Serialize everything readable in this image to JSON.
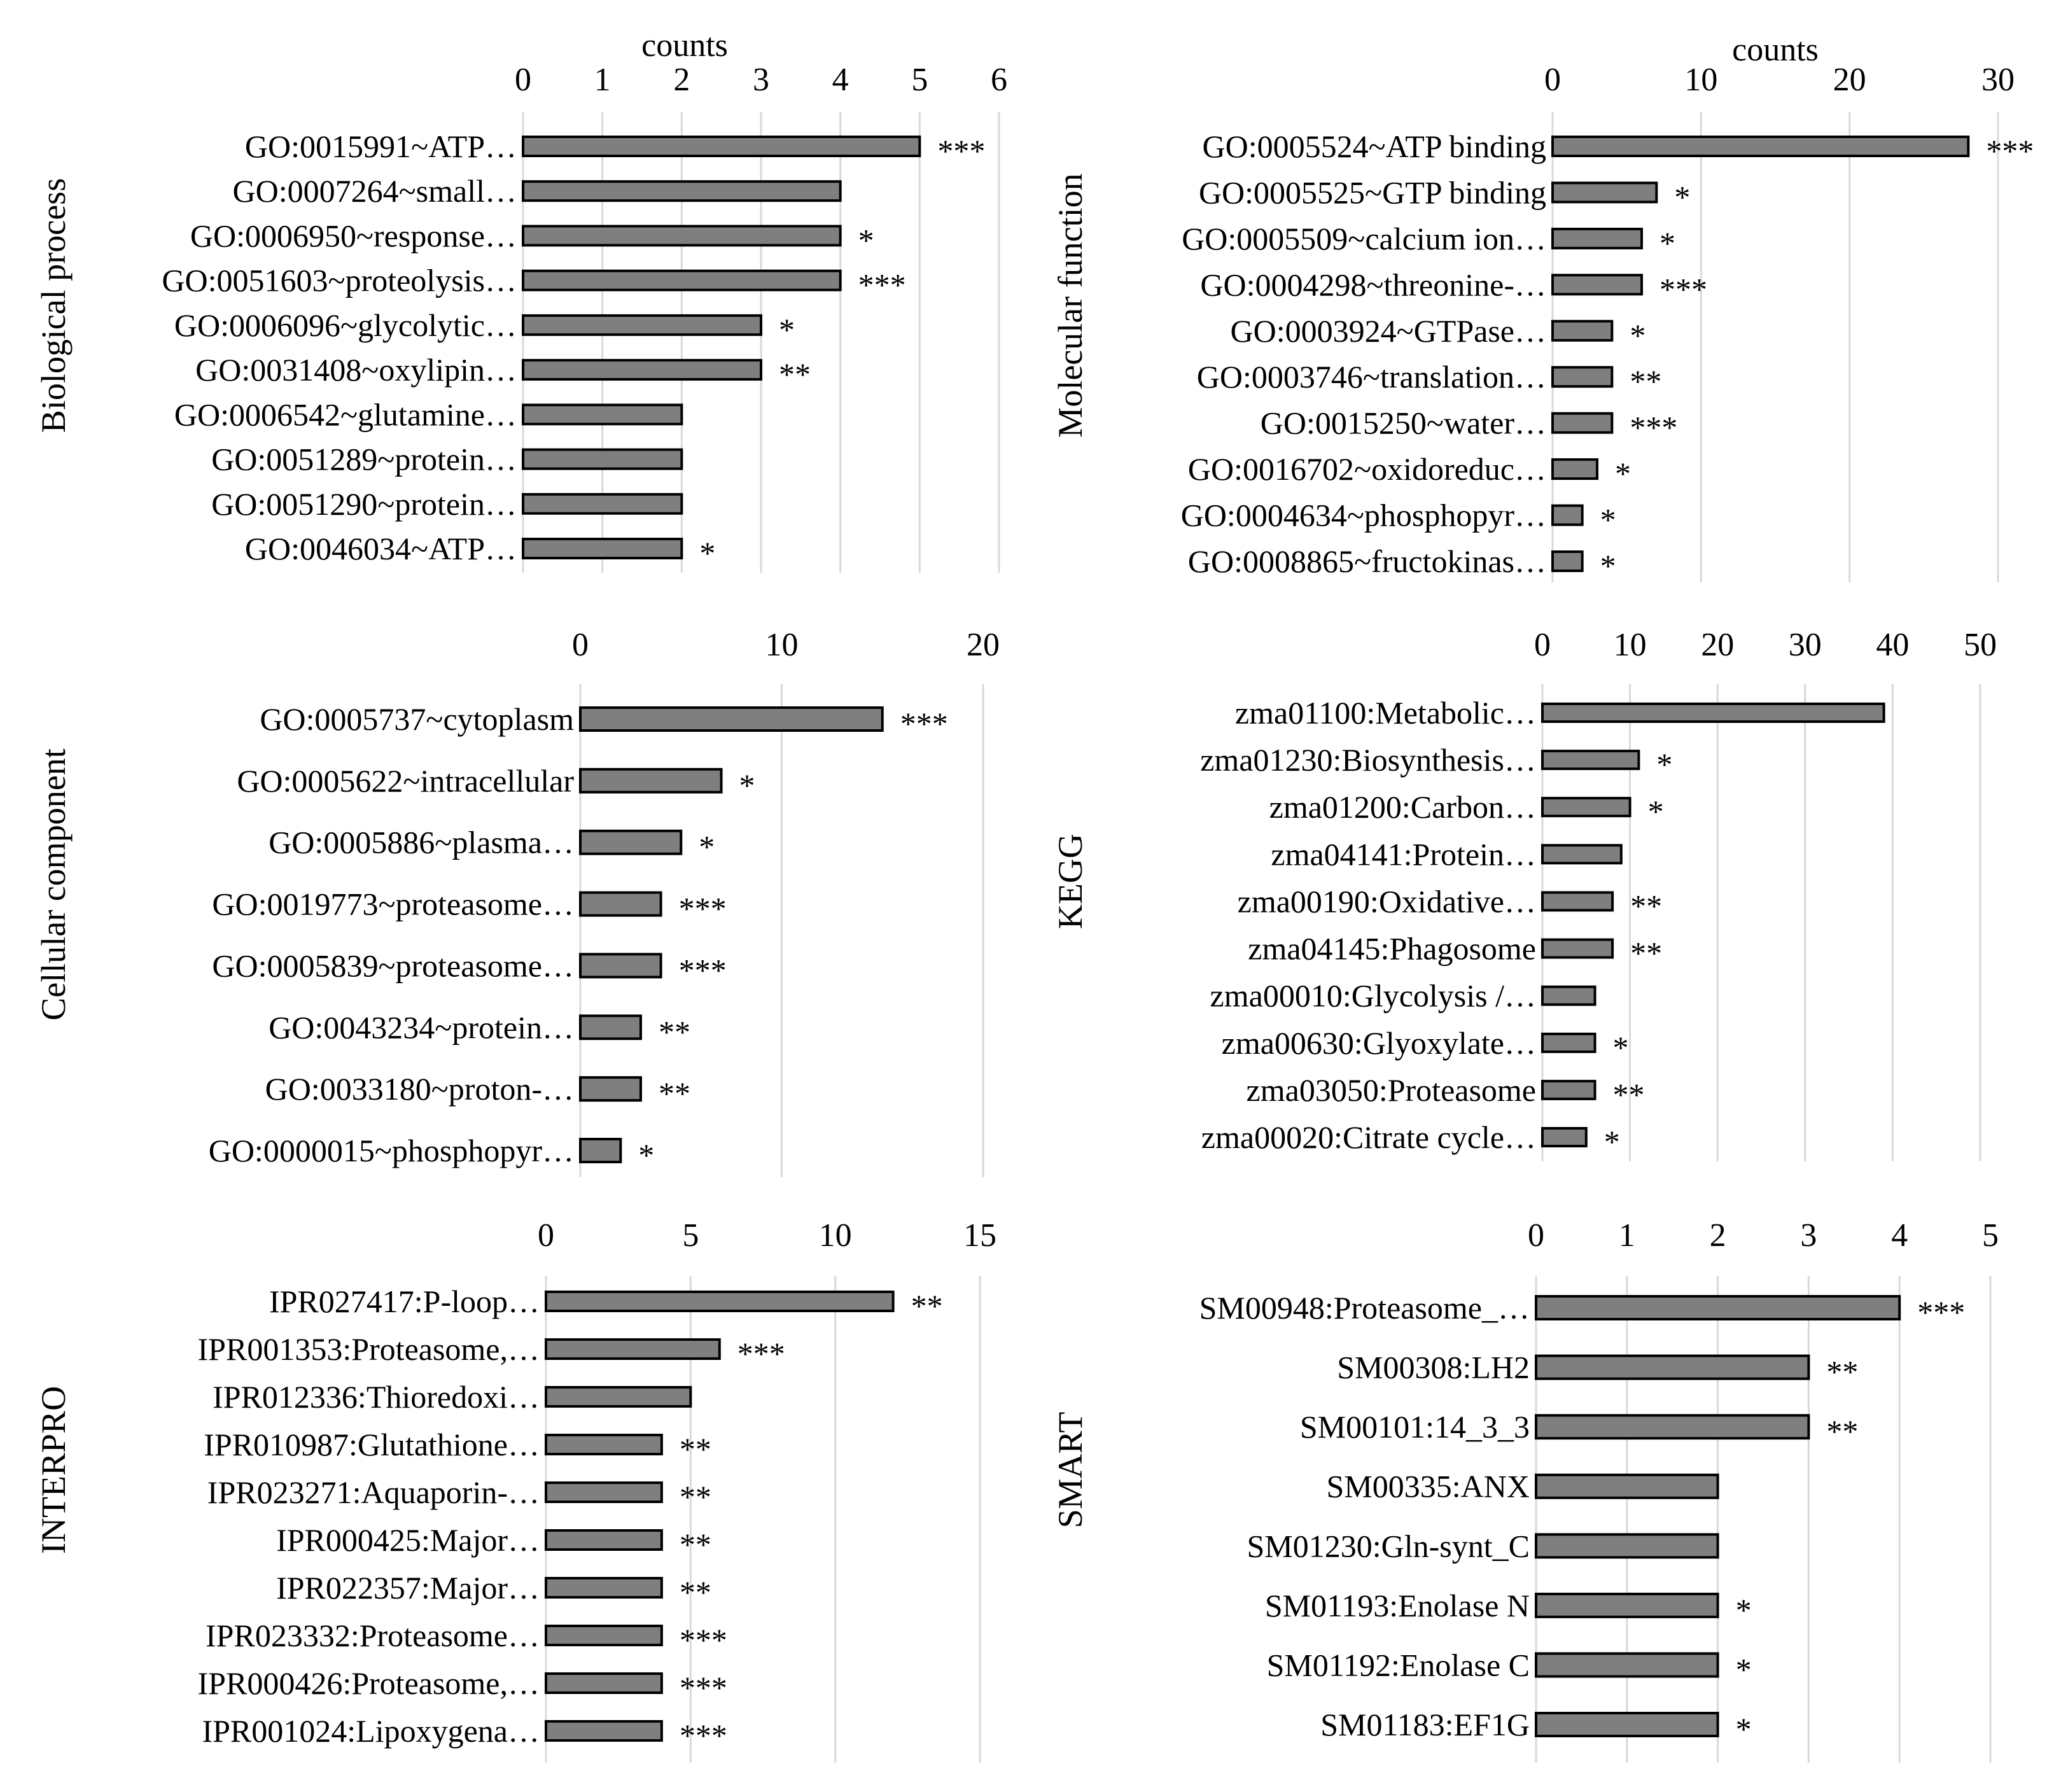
{
  "chart_data": [
    {
      "type": "bar",
      "orientation": "horizontal",
      "panel_label": "Biological process",
      "xlabel": "counts",
      "xlim": [
        0,
        6
      ],
      "ticks": [
        0,
        1,
        2,
        3,
        4,
        5,
        6
      ],
      "categories": [
        "GO:0015991~ATP…",
        "GO:0007264~small…",
        "GO:0006950~response…",
        "GO:0051603~proteolysis…",
        "GO:0006096~glycolytic…",
        "GO:0031408~oxylipin…",
        "GO:0006542~glutamine…",
        "GO:0051289~protein…",
        "GO:0051290~protein…",
        "GO:0046034~ATP…"
      ],
      "values": [
        5,
        4,
        4,
        4,
        3,
        3,
        2,
        2,
        2,
        2
      ],
      "significance": [
        "***",
        "",
        "*",
        "***",
        "*",
        "**",
        "",
        "",
        "",
        "*"
      ]
    },
    {
      "type": "bar",
      "orientation": "horizontal",
      "panel_label": "Molecular function",
      "xlabel": "counts",
      "xlim": [
        0,
        30
      ],
      "ticks": [
        0,
        10,
        20,
        30
      ],
      "categories": [
        "GO:0005524~ATP binding",
        "GO:0005525~GTP binding",
        "GO:0005509~calcium ion…",
        "GO:0004298~threonine-…",
        "GO:0003924~GTPase…",
        "GO:0003746~translation…",
        "GO:0015250~water…",
        "GO:0016702~oxidoreduc…",
        "GO:0004634~phosphopyr…",
        "GO:0008865~fructokinas…"
      ],
      "values": [
        28,
        7,
        6,
        6,
        4,
        4,
        4,
        3,
        2,
        2
      ],
      "significance": [
        "***",
        "*",
        "*",
        "***",
        "*",
        "**",
        "***",
        "*",
        "*",
        "*"
      ]
    },
    {
      "type": "bar",
      "orientation": "horizontal",
      "panel_label": "Cellular component",
      "xlabel": "",
      "xlim": [
        0,
        20
      ],
      "ticks": [
        0,
        10,
        20
      ],
      "categories": [
        "GO:0005737~cytoplasm",
        "GO:0005622~intracellular",
        "GO:0005886~plasma…",
        "GO:0019773~proteasome…",
        "GO:0005839~proteasome…",
        "GO:0043234~protein…",
        "GO:0033180~proton-…",
        "GO:0000015~phosphopyr…"
      ],
      "values": [
        15,
        7,
        5,
        4,
        4,
        3,
        3,
        2
      ],
      "significance": [
        "***",
        "*",
        "*",
        "***",
        "***",
        "**",
        "**",
        "*"
      ]
    },
    {
      "type": "bar",
      "orientation": "horizontal",
      "panel_label": "KEGG",
      "xlabel": "",
      "xlim": [
        0,
        50
      ],
      "ticks": [
        0,
        10,
        20,
        30,
        40,
        50
      ],
      "categories": [
        "zma01100:Metabolic…",
        "zma01230:Biosynthesis…",
        "zma01200:Carbon…",
        "zma04141:Protein…",
        "zma00190:Oxidative…",
        "zma04145:Phagosome",
        "zma00010:Glycolysis /…",
        "zma00630:Glyoxylate…",
        "zma03050:Proteasome",
        "zma00020:Citrate cycle…"
      ],
      "values": [
        39,
        11,
        10,
        9,
        8,
        8,
        6,
        6,
        6,
        5
      ],
      "significance": [
        "",
        "*",
        "*",
        "",
        "**",
        "**",
        "",
        "*",
        "**",
        "*"
      ]
    },
    {
      "type": "bar",
      "orientation": "horizontal",
      "panel_label": "INTERPRO",
      "xlabel": "",
      "xlim": [
        0,
        15
      ],
      "ticks": [
        0,
        5,
        10,
        15
      ],
      "categories": [
        "IPR027417:P-loop…",
        "IPR001353:Proteasome,…",
        "IPR012336:Thioredoxi…",
        "IPR010987:Glutathione…",
        "IPR023271:Aquaporin-…",
        "IPR000425:Major…",
        "IPR022357:Major…",
        "IPR023332:Proteasome…",
        "IPR000426:Proteasome,…",
        "IPR001024:Lipoxygena…"
      ],
      "values": [
        12,
        6,
        5,
        4,
        4,
        4,
        4,
        4,
        4,
        4
      ],
      "significance": [
        "**",
        "***",
        "",
        "**",
        "**",
        "**",
        "**",
        "***",
        "***",
        "***"
      ]
    },
    {
      "type": "bar",
      "orientation": "horizontal",
      "panel_label": "SMART",
      "xlabel": "",
      "xlim": [
        0,
        5
      ],
      "ticks": [
        0,
        1,
        2,
        3,
        4,
        5
      ],
      "categories": [
        "SM00948:Proteasome_…",
        "SM00308:LH2",
        "SM00101:14_3_3",
        "SM00335:ANX",
        "SM01230:Gln-synt_C",
        "SM01193:Enolase N",
        "SM01192:Enolase C",
        "SM01183:EF1G"
      ],
      "values": [
        4,
        3,
        3,
        2,
        2,
        2,
        2,
        2
      ],
      "significance": [
        "***",
        "**",
        "**",
        "",
        "",
        "*",
        "*",
        "*"
      ]
    }
  ]
}
